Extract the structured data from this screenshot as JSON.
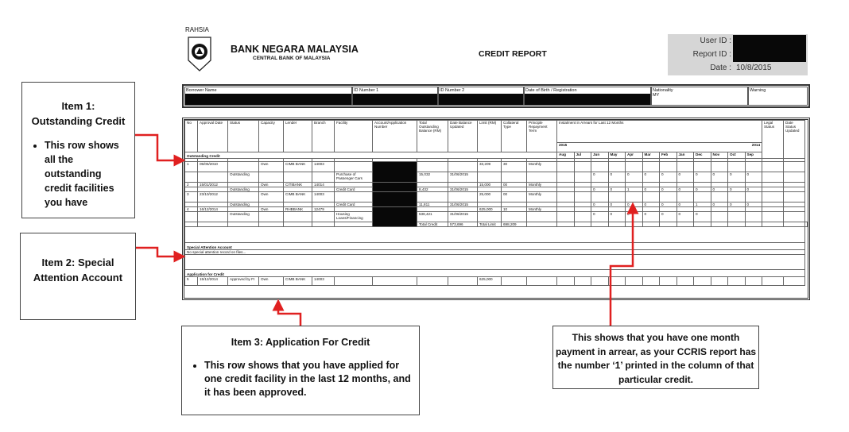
{
  "header": {
    "classification": "RAHSIA",
    "bank_name": "BANK NEGARA MALAYSIA",
    "bank_subtitle": "CENTRAL BANK OF MALAYSIA",
    "report_title": "CREDIT REPORT",
    "user_id_label": "User ID :",
    "report_id_label": "Report ID :",
    "date_label": "Date :",
    "date_value": "10/8/2015"
  },
  "borrower": {
    "columns": [
      "Borrower Name",
      "ID Number 1",
      "ID Number 2",
      "Date of Birth / Registration",
      "Nationality",
      "Warning"
    ],
    "nationality_value": "MY"
  },
  "report_table": {
    "columns": [
      "No",
      "Approval Date",
      "Status",
      "Capacity",
      "Lender",
      "Branch",
      "Facility",
      "Account/Application Number",
      "Total Outstanding Balance (RM)",
      "Date Balance Updated",
      "Limit (RM)",
      "Collateral Type",
      "Principle Repayment Term"
    ],
    "arrears_header": "Instalment in Arrears for Last 12 Months",
    "legal_status": "Legal Status",
    "date_status_updated": "Date Status Updated",
    "year_left": "2015",
    "year_right": "2014",
    "months": [
      "Aug",
      "Jul",
      "Jun",
      "May",
      "Apr",
      "Mar",
      "Feb",
      "Jan",
      "Dec",
      "Nov",
      "Oct",
      "Sep"
    ],
    "outstanding_section": "Outstanding Credit",
    "facilities": [
      {
        "no": "1",
        "approval_date": "05/05/2010",
        "capacity": "Own",
        "lender": "CIMB BANK",
        "branch": "14003",
        "limit": "33,209",
        "collateral": "30",
        "term": "Monthly",
        "status": "Outstanding",
        "facility": "Purchase of Passenger Cars",
        "balance": "15,032",
        "balance_date": "31/06/2015",
        "arrears": [
          "",
          "",
          "0",
          "0",
          "0",
          "0",
          "0",
          "0",
          "0",
          "0",
          "0",
          "0"
        ]
      },
      {
        "no": "2",
        "approval_date": "15/01/2012",
        "capacity": "Own",
        "lender": "CITIBANK",
        "branch": "14014",
        "limit": "15,000",
        "collateral": "00",
        "term": "Monthly",
        "status": "Outstanding",
        "facility": "Credit Card",
        "balance": "8,432",
        "balance_date": "31/06/2015",
        "arrears": [
          "",
          "",
          "0",
          "0",
          "1",
          "0",
          "0",
          "0",
          "0",
          "0",
          "0",
          "0"
        ]
      },
      {
        "no": "3",
        "approval_date": "23/10/2012",
        "capacity": "Own",
        "lender": "CIMB BANK",
        "branch": "14003",
        "limit": "25,000",
        "collateral": "00",
        "term": "Monthly",
        "status": "Outstanding",
        "facility": "Credit Card",
        "balance": "11,811",
        "balance_date": "31/06/2015",
        "arrears": [
          "",
          "",
          "0",
          "0",
          "0",
          "0",
          "0",
          "0",
          "1",
          "0",
          "0",
          "0"
        ]
      },
      {
        "no": "4",
        "approval_date": "16/12/2014",
        "capacity": "Own",
        "lender": "RHBBANK",
        "branch": "12479",
        "limit": "625,000",
        "collateral": "10",
        "term": "Monthly",
        "status": "Outstanding",
        "facility": "Housing Loans/Financing",
        "balance": "538,421",
        "balance_date": "31/06/2015",
        "arrears": [
          "",
          "",
          "0",
          "0",
          "0",
          "0",
          "0",
          "0",
          "0",
          "",
          "",
          ""
        ]
      }
    ],
    "total_credit_label": "Total Credit",
    "total_credit": "573,696",
    "total_limit_label": "Total Limit",
    "total_limit": "698,209",
    "special_section": "Special Attention Account",
    "special_text": "No special attention record on files...",
    "application_section": "Application for Credit",
    "application": {
      "no": "5",
      "approval_date": "15/12/2014",
      "status": "Approved by FI",
      "capacity": "Own",
      "lender": "CIMB BANK",
      "branch": "14003",
      "limit": "625,000"
    }
  },
  "callouts": {
    "item1_title": "Item 1: Outstanding Credit",
    "item1_text": "This row shows all the outstanding credit facilities you have",
    "item2_title": "Item 2: Special Attention Account",
    "item3_title": "Item 3: Application For Credit",
    "item3_text": "This row shows that you have applied for one credit facility in the last 12 months, and it has been approved.",
    "arrears_note": "This shows that you have one month payment in arrear, as your CCRIS report has the number ‘1’ printed in the column of that particular credit."
  },
  "colors": {
    "annotation_red": "#e02020",
    "redaction": "#080808",
    "id_box": "#d6d6d6"
  }
}
